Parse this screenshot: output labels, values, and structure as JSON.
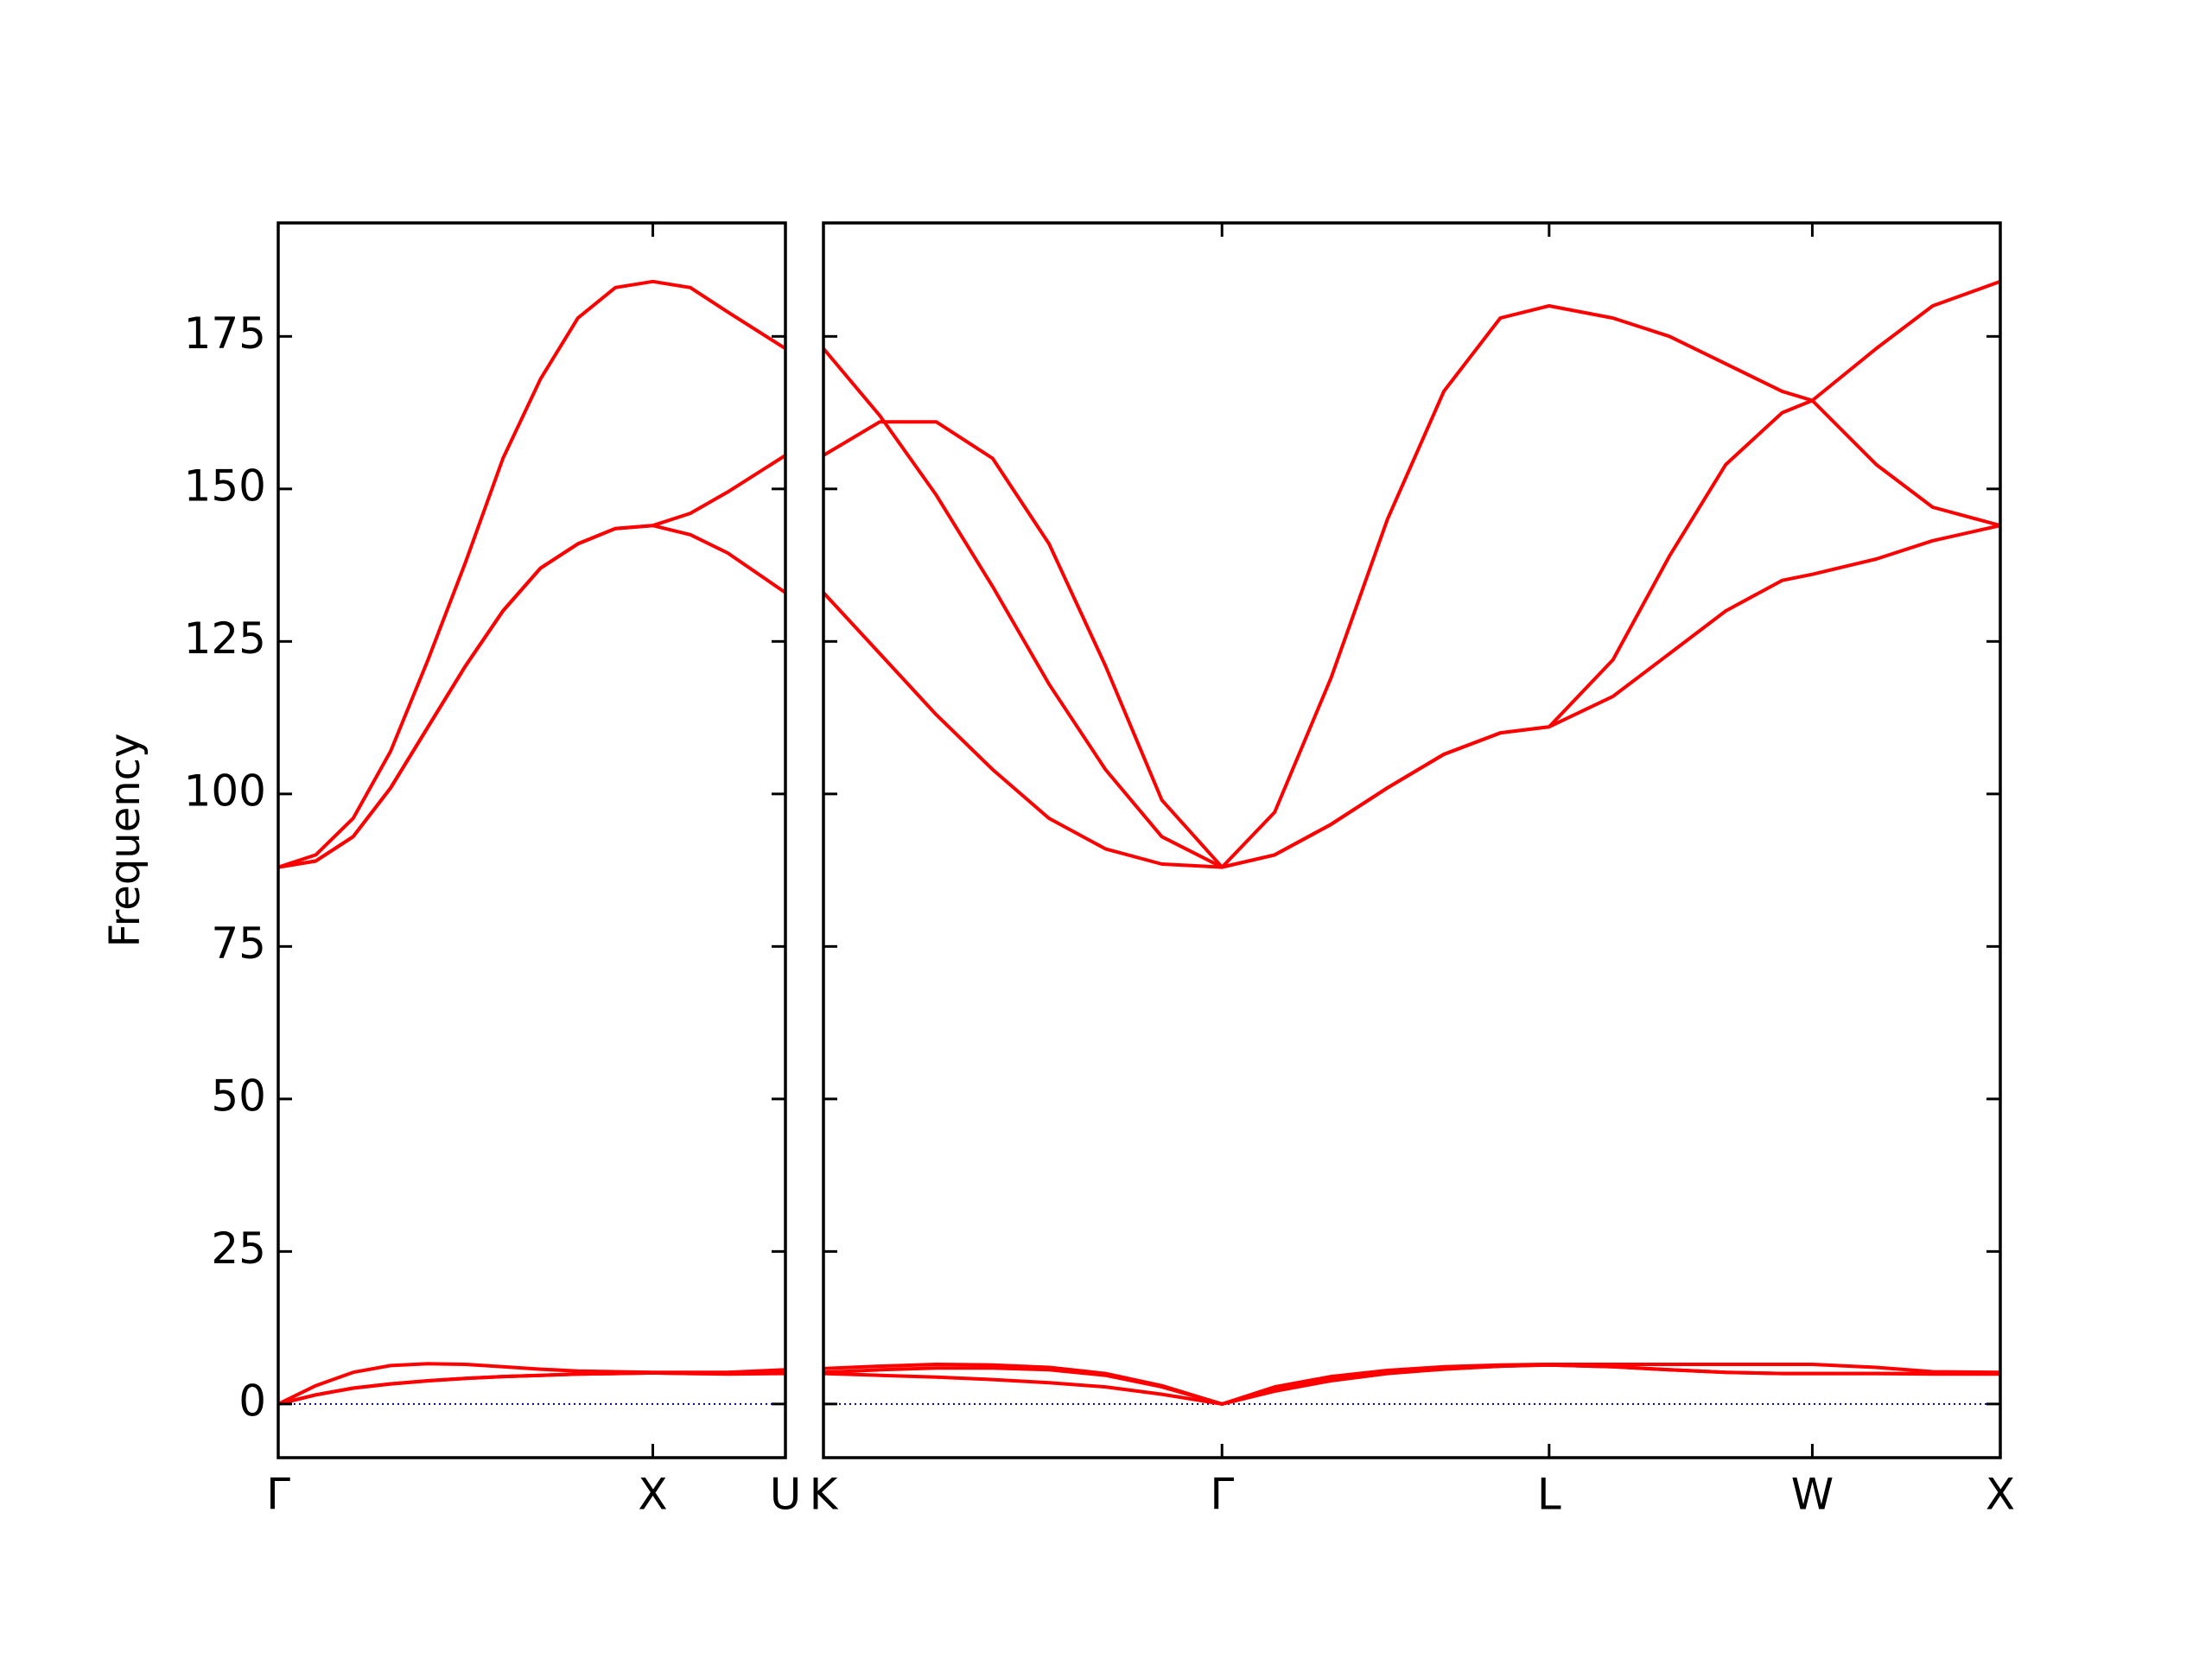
{
  "chart_data": [
    {
      "type": "line",
      "ylabel": "Frequency",
      "x": [
        0,
        0.1,
        0.2,
        0.3,
        0.4,
        0.5,
        0.6,
        0.7,
        0.8,
        0.9,
        1.0,
        1.1,
        1.2,
        1.354
      ],
      "xlim": [
        0,
        1.354
      ],
      "xticks": [
        {
          "value": 0,
          "label": "Γ"
        },
        {
          "value": 1.0,
          "label": "X"
        },
        {
          "value": 1.354,
          "label": "U"
        }
      ],
      "ylim": [
        -8.8,
        193.6
      ],
      "yticks": [
        0,
        25,
        50,
        75,
        100,
        125,
        150,
        175
      ],
      "ytick_labels": true,
      "zero_line": {
        "value": 0,
        "color": "#00008b"
      },
      "series": [
        {
          "color": "#ff0000",
          "values": [
            88,
            90,
            96,
            107,
            122,
            138,
            155,
            168,
            178,
            183,
            184,
            183,
            179,
            173
          ]
        },
        {
          "color": "#ff0000",
          "values": [
            88,
            89,
            93,
            101,
            111,
            121,
            130,
            137,
            141,
            143.5,
            144,
            146,
            149.5,
            155.5
          ]
        },
        {
          "color": "#ff0000",
          "values": [
            88,
            89,
            93,
            101,
            111,
            121,
            130,
            137,
            141,
            143.5,
            144,
            142.5,
            139.5,
            133
          ]
        },
        {
          "color": "#ff0000",
          "values": [
            0,
            3,
            5.2,
            6.3,
            6.6,
            6.5,
            6.1,
            5.7,
            5.4,
            5.3,
            5.2,
            5.2,
            5.2,
            5.6
          ]
        },
        {
          "color": "#ff0000",
          "values": [
            0,
            1.5,
            2.6,
            3.3,
            3.8,
            4.2,
            4.5,
            4.7,
            4.9,
            5.0,
            5.1,
            5.0,
            5.0,
            5.3
          ]
        },
        {
          "color": "#ff0000",
          "values": [
            0,
            1.5,
            2.6,
            3.3,
            3.8,
            4.2,
            4.5,
            4.7,
            4.9,
            5.0,
            5.1,
            5.0,
            4.9,
            5.0
          ]
        }
      ]
    },
    {
      "type": "line",
      "x": [
        0,
        0.15,
        0.3,
        0.45,
        0.6,
        0.75,
        0.9,
        1.06,
        1.2,
        1.35,
        1.5,
        1.65,
        1.8,
        1.93,
        2.1,
        2.25,
        2.4,
        2.55,
        2.63,
        2.8,
        2.95,
        3.13
      ],
      "xlim": [
        0,
        3.13
      ],
      "xticks": [
        {
          "value": 0,
          "label": "K"
        },
        {
          "value": 1.06,
          "label": "Γ"
        },
        {
          "value": 1.93,
          "label": "L"
        },
        {
          "value": 2.63,
          "label": "W"
        },
        {
          "value": 3.13,
          "label": "X"
        }
      ],
      "ylim": [
        -8.8,
        193.6
      ],
      "yticks": [
        0,
        25,
        50,
        75,
        100,
        125,
        150,
        175
      ],
      "ytick_labels": false,
      "zero_line": {
        "value": 0,
        "color": "#00008b"
      },
      "series": [
        {
          "color": "#ff0000",
          "values": [
            173,
            162,
            149,
            134,
            118,
            104,
            93,
            88,
            97,
            119,
            145,
            166,
            178,
            180,
            178,
            175,
            170.5,
            166,
            164.5,
            173,
            180,
            184
          ]
        },
        {
          "color": "#ff0000",
          "values": [
            155.5,
            161,
            161,
            155,
            141,
            121,
            99,
            88,
            90,
            95,
            101,
            106.5,
            110,
            111,
            122,
            139,
            154,
            162.5,
            164.5,
            154,
            147,
            144
          ]
        },
        {
          "color": "#ff0000",
          "values": [
            133,
            123,
            113,
            104,
            96,
            91,
            88.5,
            88,
            90,
            95,
            101,
            106.5,
            110,
            111,
            116,
            123,
            130,
            135,
            136,
            138.5,
            141.5,
            144
          ]
        },
        {
          "color": "#ff0000",
          "values": [
            5.8,
            6.2,
            6.5,
            6.4,
            6,
            5,
            3,
            0,
            2.8,
            4.5,
            5.5,
            6.1,
            6.4,
            6.5,
            6.5,
            6.5,
            6.5,
            6.5,
            6.5,
            6,
            5.3,
            5.2
          ]
        },
        {
          "color": "#ff0000",
          "values": [
            5.2,
            5.6,
            5.9,
            5.9,
            5.6,
            4.7,
            2.8,
            0,
            2.5,
            4.2,
            5.2,
            5.8,
            6.2,
            6.4,
            6.1,
            5.6,
            5.2,
            5,
            5,
            5,
            5,
            5.1
          ]
        },
        {
          "color": "#ff0000",
          "values": [
            5.0,
            4.7,
            4.4,
            4.0,
            3.5,
            2.8,
            1.6,
            0,
            2.1,
            3.8,
            5,
            5.7,
            6.2,
            6.4,
            6.1,
            5.6,
            5.2,
            5,
            5,
            5,
            4.9,
            4.9
          ]
        }
      ]
    }
  ]
}
